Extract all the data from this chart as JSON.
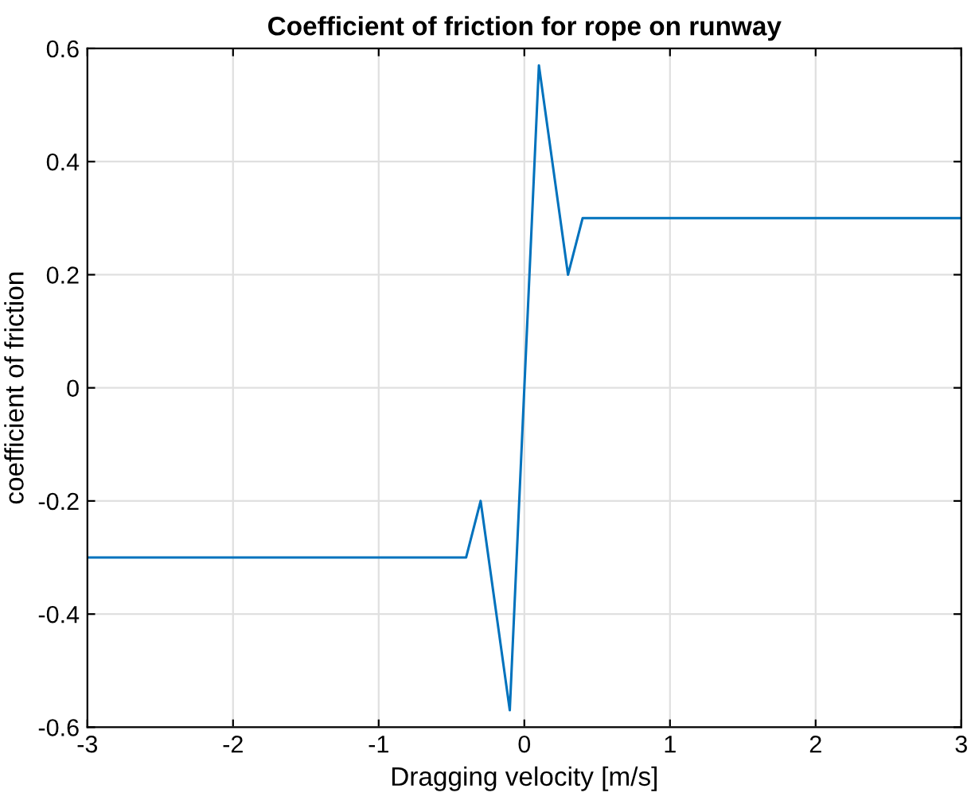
{
  "chart_data": {
    "type": "line",
    "title": "Coefficient of friction for rope on runway",
    "xlabel": "Dragging velocity [m/s]",
    "ylabel": "coefficient of friction",
    "x": [
      -3,
      -0.4,
      -0.3,
      -0.1,
      0.1,
      0.3,
      0.4,
      3
    ],
    "series": [
      {
        "color": "#0072bd",
        "values": [
          -0.3,
          -0.3,
          -0.2,
          -0.57,
          0.57,
          0.2,
          0.3,
          0.3
        ]
      }
    ],
    "xlim": [
      -3,
      3
    ],
    "xticks": [
      -3,
      -2,
      -1,
      0,
      1,
      2,
      3
    ],
    "ylim": [
      -0.6,
      0.6
    ],
    "yticks": [
      -0.6,
      -0.4,
      -0.2,
      0,
      0.2,
      0.4,
      0.6
    ],
    "grid": true,
    "marker": "none",
    "line_style": "solid"
  }
}
